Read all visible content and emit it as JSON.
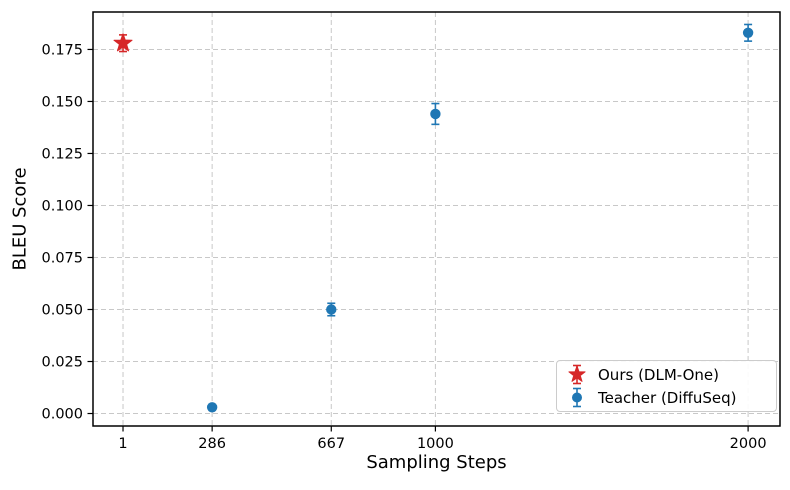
{
  "chart_data": {
    "type": "scatter",
    "title": "",
    "xlabel": "Sampling Steps",
    "ylabel": "BLEU Score",
    "xlim": [
      -95,
      2102
    ],
    "ylim": [
      -0.006,
      0.193
    ],
    "xticks": [
      1,
      286,
      667,
      1000,
      2000
    ],
    "xtick_labels": [
      "1",
      "286",
      "667",
      "1000",
      "2000"
    ],
    "yticks": [
      0.0,
      0.025,
      0.05,
      0.075,
      0.1,
      0.125,
      0.15,
      0.175
    ],
    "ytick_labels": [
      "0.000",
      "0.025",
      "0.050",
      "0.075",
      "0.100",
      "0.125",
      "0.150",
      "0.175"
    ],
    "grid": true,
    "grid_style": "dashed",
    "grid_color": "#c8c8c8",
    "spine_color": "#000000",
    "legend_position": "lower right",
    "series": [
      {
        "name": "Ours (DLM-One)",
        "marker": "star",
        "color": "#d62728",
        "points": [
          {
            "x": 1,
            "y": 0.178,
            "yerr": 0.004
          }
        ]
      },
      {
        "name": "Teacher (DiffuSeq)",
        "marker": "circle",
        "color": "#1f77b4",
        "points": [
          {
            "x": 286,
            "y": 0.003,
            "yerr": 0.001
          },
          {
            "x": 667,
            "y": 0.05,
            "yerr": 0.003
          },
          {
            "x": 1000,
            "y": 0.144,
            "yerr": 0.005
          },
          {
            "x": 2000,
            "y": 0.183,
            "yerr": 0.004
          }
        ]
      }
    ]
  }
}
